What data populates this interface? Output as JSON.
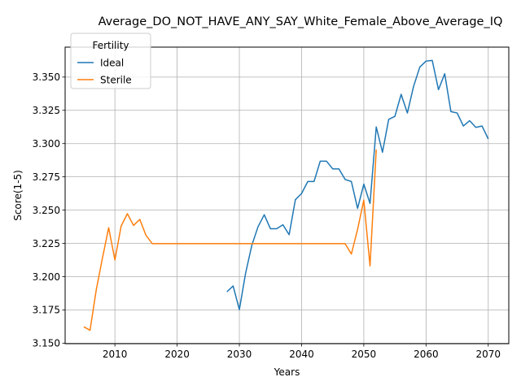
{
  "chart_data": {
    "type": "line",
    "title": "Average_DO_NOT_HAVE_ANY_SAY_White_Female_Above_Average_IQ",
    "xlabel": "Years",
    "ylabel": "Score(1-5)",
    "xlim": [
      2002,
      2073.3
    ],
    "ylim": [
      3.1496,
      3.3725
    ],
    "xticks": [
      2010,
      2020,
      2030,
      2040,
      2050,
      2060,
      2070
    ],
    "yticks": [
      3.15,
      3.175,
      3.2,
      3.225,
      3.25,
      3.275,
      3.3,
      3.325,
      3.35
    ],
    "ytick_labels": [
      "3.150",
      "3.175",
      "3.200",
      "3.225",
      "3.250",
      "3.275",
      "3.300",
      "3.325",
      "3.350"
    ],
    "grid": true,
    "legend": {
      "title": "Fertility",
      "placement": "top-left"
    },
    "series": [
      {
        "name": "Ideal",
        "color": "#1f77b4",
        "x": [
          2028,
          2029,
          2030,
          2031,
          2032,
          2033,
          2034,
          2035,
          2036,
          2037,
          2038,
          2039,
          2040,
          2041,
          2042,
          2043,
          2044,
          2045,
          2046,
          2047,
          2048,
          2049,
          2050,
          2051,
          2052,
          2053,
          2054,
          2055,
          2056,
          2057,
          2058,
          2059,
          2060,
          2061,
          2062,
          2063,
          2064,
          2065,
          2066,
          2067,
          2068,
          2069,
          2070
        ],
        "y": [
          3.1886,
          3.193,
          3.1752,
          3.2025,
          3.2235,
          3.2375,
          3.2465,
          3.236,
          3.236,
          3.239,
          3.2315,
          3.2578,
          3.2625,
          3.2715,
          3.2715,
          3.2868,
          3.2868,
          3.281,
          3.281,
          3.273,
          3.2715,
          3.2513,
          3.2695,
          3.255,
          3.3125,
          3.2935,
          3.3182,
          3.3205,
          3.337,
          3.323,
          3.343,
          3.3575,
          3.362,
          3.3625,
          3.3405,
          3.3525,
          3.324,
          3.323,
          3.3132,
          3.3172,
          3.3122,
          3.3132,
          3.3035
        ]
      },
      {
        "name": "Sterile",
        "color": "#ff7f0e",
        "x": [
          2005,
          2006,
          2007,
          2008,
          2009,
          2010,
          2011,
          2012,
          2013,
          2014,
          2015,
          2016,
          2017,
          2018,
          2019,
          2020,
          2021,
          2022,
          2023,
          2024,
          2025,
          2026,
          2027,
          2028,
          2029,
          2030,
          2031,
          2032,
          2033,
          2034,
          2035,
          2036,
          2037,
          2038,
          2039,
          2040,
          2041,
          2042,
          2043,
          2044,
          2045,
          2046,
          2047,
          2048,
          2049,
          2050,
          2051,
          2052
        ],
        "y": [
          3.1623,
          3.1597,
          3.19,
          3.214,
          3.2368,
          3.2125,
          3.238,
          3.2473,
          3.2385,
          3.243,
          3.231,
          3.2248,
          3.2248,
          3.2248,
          3.2248,
          3.2248,
          3.2248,
          3.2248,
          3.2248,
          3.2248,
          3.2248,
          3.2248,
          3.2248,
          3.2248,
          3.2248,
          3.2248,
          3.2248,
          3.2248,
          3.2248,
          3.2248,
          3.2248,
          3.2248,
          3.2248,
          3.2248,
          3.2248,
          3.2248,
          3.2248,
          3.2248,
          3.2248,
          3.2248,
          3.2248,
          3.2248,
          3.2248,
          3.217,
          3.2355,
          3.2575,
          3.208,
          3.2955
        ]
      }
    ]
  }
}
